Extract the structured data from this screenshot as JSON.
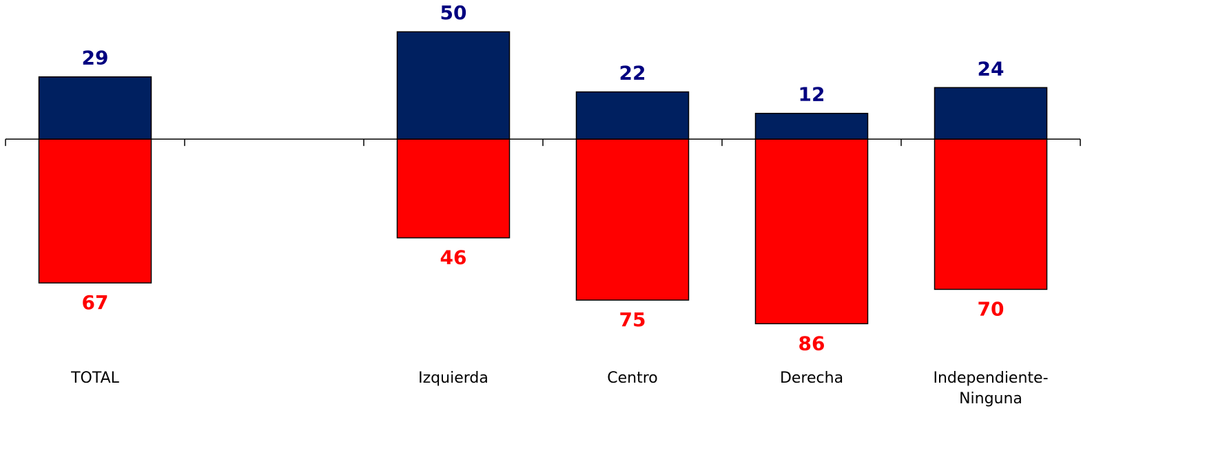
{
  "chart_data": {
    "type": "bar",
    "categories": [
      "TOTAL",
      null,
      "Izquierda",
      "Centro",
      "Derecha",
      "Independiente-Ninguna"
    ],
    "series": [
      {
        "color": "#002060",
        "label_color": "#000080",
        "values": [
          29,
          null,
          50,
          22,
          12,
          24
        ]
      },
      {
        "color": "#ff0000",
        "label_color": "#ff0000",
        "values": [
          -67,
          null,
          -46,
          -75,
          -86,
          -70
        ],
        "value_labels": [
          "67",
          null,
          "46",
          "75",
          "86",
          "70"
        ]
      }
    ],
    "ylim": [
      -100,
      60
    ]
  }
}
